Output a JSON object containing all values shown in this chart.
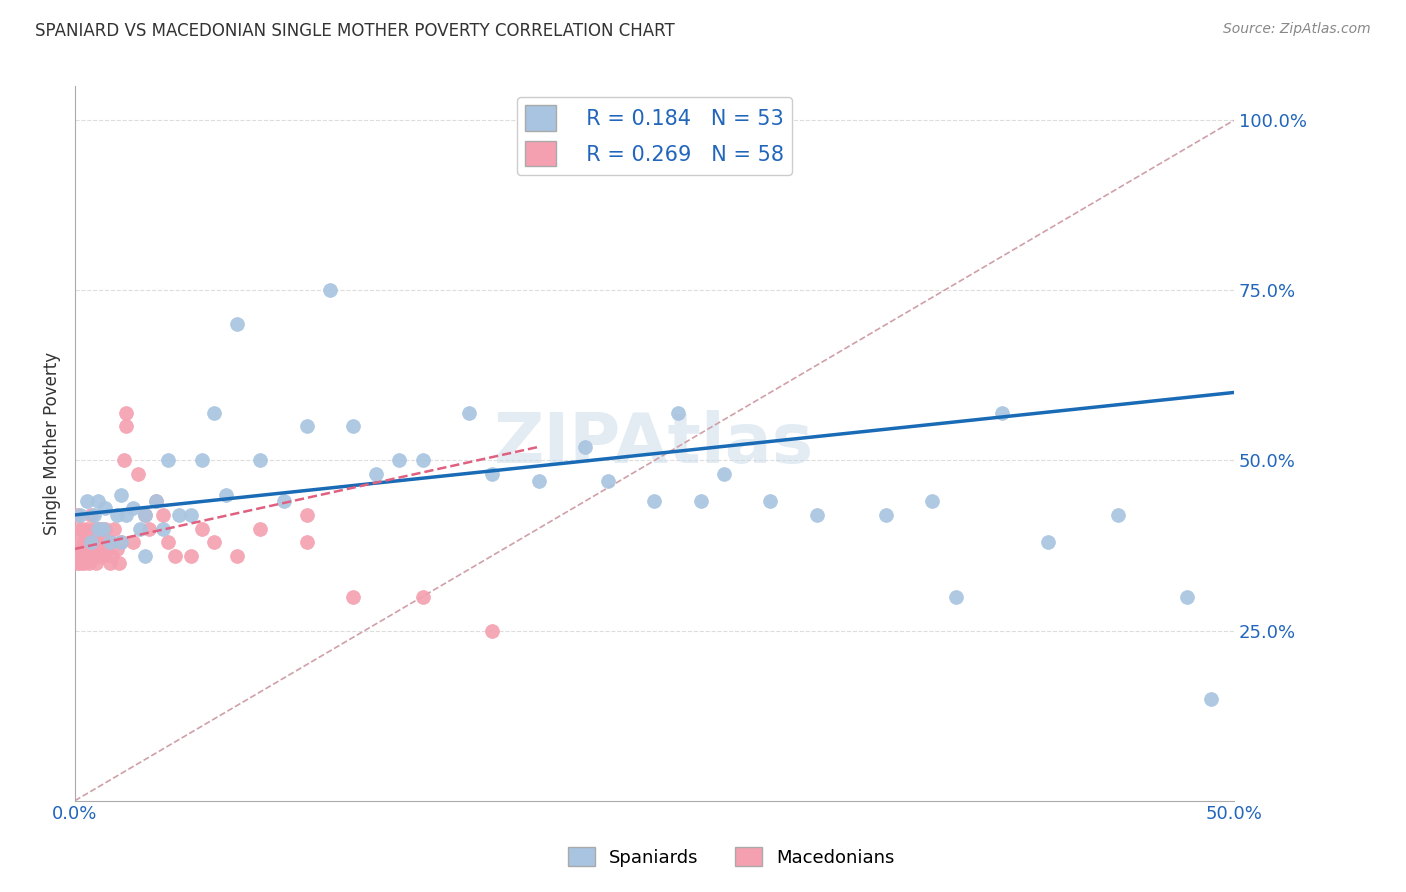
{
  "title": "SPANIARD VS MACEDONIAN SINGLE MOTHER POVERTY CORRELATION CHART",
  "source": "Source: ZipAtlas.com",
  "ylabel": "Single Mother Poverty",
  "legend_spaniards": "Spaniards",
  "legend_macedonians": "Macedonians",
  "R_spaniards": 0.184,
  "N_spaniards": 53,
  "R_macedonians": 0.269,
  "N_macedonians": 58,
  "xlim": [
    0.0,
    0.5
  ],
  "ylim": [
    0.0,
    1.05
  ],
  "ytick_positions_right": [
    0.0,
    0.25,
    0.5,
    0.75,
    1.0
  ],
  "ytick_labels_right": [
    "",
    "25.0%",
    "50.0%",
    "75.0%",
    "100.0%"
  ],
  "color_spaniards": "#a8c4e0",
  "color_macedonians": "#f4a0b0",
  "color_line_spaniards": "#1a6bb5",
  "color_line_macedonians": "#e06080",
  "color_diag": "#d0a0a8",
  "watermark": "ZIPAtlas",
  "spaniards_x": [
    0.002,
    0.005,
    0.007,
    0.008,
    0.01,
    0.01,
    0.012,
    0.013,
    0.015,
    0.018,
    0.02,
    0.02,
    0.022,
    0.025,
    0.028,
    0.03,
    0.03,
    0.035,
    0.038,
    0.04,
    0.045,
    0.05,
    0.055,
    0.06,
    0.065,
    0.07,
    0.08,
    0.09,
    0.1,
    0.11,
    0.12,
    0.13,
    0.14,
    0.15,
    0.17,
    0.18,
    0.2,
    0.22,
    0.23,
    0.25,
    0.26,
    0.27,
    0.28,
    0.3,
    0.32,
    0.35,
    0.37,
    0.38,
    0.4,
    0.42,
    0.45,
    0.48,
    0.49
  ],
  "spaniards_y": [
    0.42,
    0.44,
    0.38,
    0.42,
    0.4,
    0.44,
    0.4,
    0.43,
    0.38,
    0.42,
    0.38,
    0.45,
    0.42,
    0.43,
    0.4,
    0.42,
    0.36,
    0.44,
    0.4,
    0.5,
    0.42,
    0.42,
    0.5,
    0.57,
    0.45,
    0.7,
    0.5,
    0.44,
    0.55,
    0.75,
    0.55,
    0.48,
    0.5,
    0.5,
    0.57,
    0.48,
    0.47,
    0.52,
    0.47,
    0.44,
    0.57,
    0.44,
    0.48,
    0.44,
    0.42,
    0.42,
    0.44,
    0.3,
    0.57,
    0.38,
    0.42,
    0.3,
    0.15
  ],
  "macedonians_x": [
    0.001,
    0.001,
    0.001,
    0.002,
    0.002,
    0.002,
    0.003,
    0.003,
    0.003,
    0.004,
    0.004,
    0.005,
    0.005,
    0.005,
    0.006,
    0.007,
    0.007,
    0.008,
    0.008,
    0.009,
    0.009,
    0.01,
    0.01,
    0.01,
    0.011,
    0.011,
    0.012,
    0.012,
    0.013,
    0.014,
    0.015,
    0.015,
    0.016,
    0.017,
    0.018,
    0.019,
    0.02,
    0.021,
    0.022,
    0.022,
    0.025,
    0.027,
    0.03,
    0.032,
    0.035,
    0.038,
    0.04,
    0.043,
    0.05,
    0.055,
    0.06,
    0.07,
    0.08,
    0.1,
    0.1,
    0.12,
    0.15,
    0.18
  ],
  "macedonians_y": [
    0.35,
    0.38,
    0.42,
    0.36,
    0.4,
    0.35,
    0.37,
    0.4,
    0.36,
    0.38,
    0.35,
    0.38,
    0.4,
    0.37,
    0.35,
    0.38,
    0.42,
    0.36,
    0.4,
    0.35,
    0.38,
    0.36,
    0.38,
    0.4,
    0.37,
    0.4,
    0.36,
    0.38,
    0.4,
    0.37,
    0.35,
    0.38,
    0.36,
    0.4,
    0.37,
    0.35,
    0.38,
    0.5,
    0.55,
    0.57,
    0.38,
    0.48,
    0.42,
    0.4,
    0.44,
    0.42,
    0.38,
    0.36,
    0.36,
    0.4,
    0.38,
    0.36,
    0.4,
    0.38,
    0.42,
    0.3,
    0.3,
    0.25
  ],
  "line_sp_x0": 0.0,
  "line_sp_y0": 0.42,
  "line_sp_x1": 0.5,
  "line_sp_y1": 0.6,
  "line_mc_x0": 0.0,
  "line_mc_y0": 0.37,
  "line_mc_x1": 0.2,
  "line_mc_y1": 0.52
}
